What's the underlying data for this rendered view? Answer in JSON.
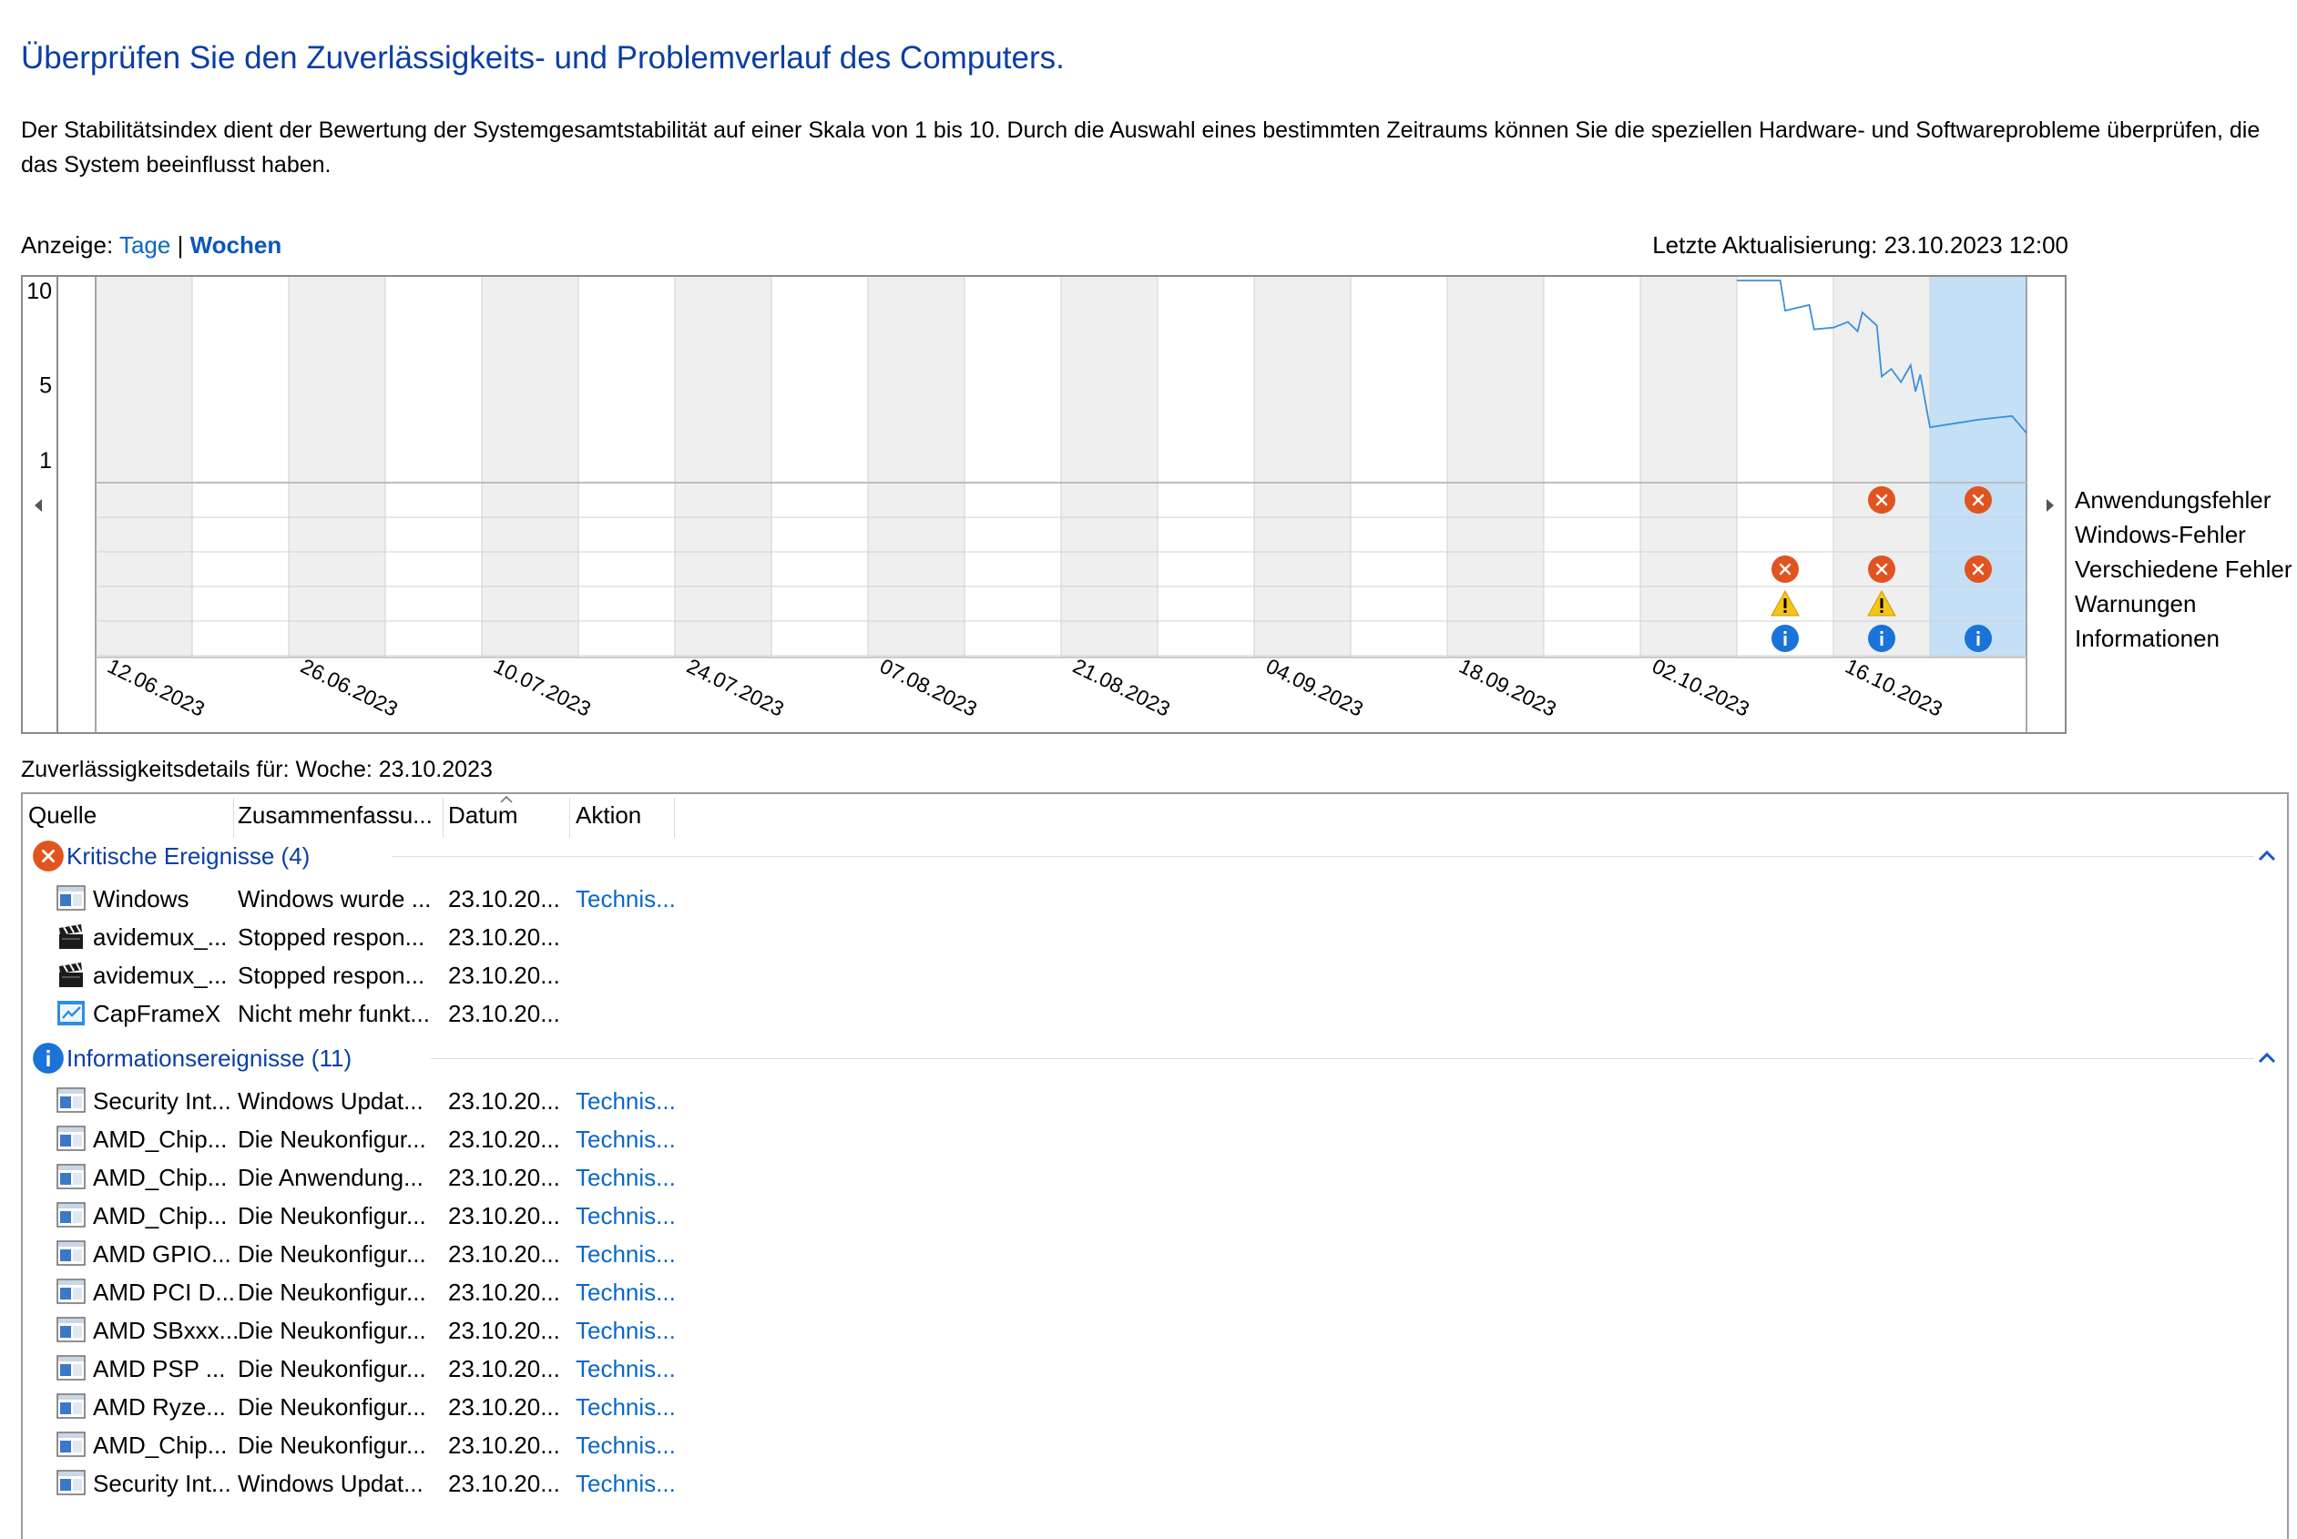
{
  "header": {
    "title": "Überprüfen Sie den Zuverlässigkeits- und Problemverlauf des Computers.",
    "description": "Der Stabilitätsindex dient der Bewertung der Systemgesamtstabilität auf einer Skala von 1 bis 10. Durch die Auswahl eines bestimmten Zeitraums können Sie die speziellen Hardware- und Softwareprobleme überprüfen, die das System beeinflusst haben."
  },
  "view": {
    "label": "Anzeige:",
    "days": "Tage",
    "separator": "|",
    "weeks": "Wochen",
    "selected": "Wochen"
  },
  "last_update": "Letzte Aktualisierung: 23.10.2023 12:00",
  "chart_data": {
    "type": "line",
    "title": "",
    "y_ticks": [
      "10",
      "5",
      "1"
    ],
    "ylim": [
      1,
      10
    ],
    "x_labels": [
      "12.06.2023",
      "26.06.2023",
      "10.07.2023",
      "24.07.2023",
      "07.08.2023",
      "21.08.2023",
      "04.09.2023",
      "18.09.2023",
      "02.10.2023",
      "16.10.2023"
    ],
    "week_count": 20,
    "selected_week_index": 19,
    "stability_series": {
      "name": "",
      "points": [
        [
          17.0,
          10.0
        ],
        [
          17.45,
          10.0
        ],
        [
          17.5,
          8.4
        ],
        [
          17.75,
          8.7
        ],
        [
          17.8,
          7.4
        ],
        [
          18.0,
          7.5
        ],
        [
          18.15,
          7.8
        ],
        [
          18.25,
          7.3
        ],
        [
          18.3,
          8.3
        ],
        [
          18.45,
          7.6
        ],
        [
          18.5,
          4.9
        ],
        [
          18.6,
          5.3
        ],
        [
          18.7,
          4.6
        ],
        [
          18.8,
          5.5
        ],
        [
          18.85,
          4.1
        ],
        [
          18.9,
          5.0
        ],
        [
          19.0,
          2.2
        ],
        [
          19.5,
          2.6
        ],
        [
          19.85,
          2.8
        ],
        [
          20.0,
          1.9
        ]
      ],
      "color": "#3c8fdc"
    },
    "event_rows": [
      {
        "label": "Anwendungsfehler",
        "markers": [
          {
            "week": 18,
            "icon": "error-icon"
          },
          {
            "week": 19,
            "icon": "error-icon"
          }
        ]
      },
      {
        "label": "Windows-Fehler",
        "markers": []
      },
      {
        "label": "Verschiedene Fehler",
        "markers": [
          {
            "week": 17,
            "icon": "error-icon"
          },
          {
            "week": 18,
            "icon": "error-icon"
          },
          {
            "week": 19,
            "icon": "error-icon"
          }
        ]
      },
      {
        "label": "Warnungen",
        "markers": [
          {
            "week": 17,
            "icon": "warning-icon"
          },
          {
            "week": 18,
            "icon": "warning-icon"
          }
        ]
      },
      {
        "label": "Informationen",
        "markers": [
          {
            "week": 17,
            "icon": "info-icon"
          },
          {
            "week": 18,
            "icon": "info-icon"
          },
          {
            "week": 19,
            "icon": "info-icon"
          }
        ]
      }
    ],
    "colors": {
      "shade": "#efefef",
      "selected": "#c4dff6",
      "grid": "#d0d0d0",
      "error": "#e0541f",
      "warning": "#f5c518",
      "info": "#1a73d9"
    }
  },
  "details": {
    "label": "Zuverlässigkeitsdetails für: Woche: 23.10.2023",
    "columns": [
      "Quelle",
      "Zusammenfassu...",
      "Datum",
      "Aktion"
    ],
    "groups": [
      {
        "title": "Kritische Ereignisse (4)",
        "icon": "error-icon",
        "rows": [
          {
            "icon": "app-window-icon",
            "source": "Windows",
            "summary": "Windows wurde ...",
            "date": "23.10.20...",
            "action": "Technis..."
          },
          {
            "icon": "clapperboard-icon",
            "source": "avidemux_...",
            "summary": "Stopped respon...",
            "date": "23.10.20...",
            "action": ""
          },
          {
            "icon": "clapperboard-icon",
            "source": "avidemux_...",
            "summary": "Stopped respon...",
            "date": "23.10.20...",
            "action": ""
          },
          {
            "icon": "capframex-icon",
            "source": "CapFrameX",
            "summary": "Nicht mehr funkt...",
            "date": "23.10.20...",
            "action": ""
          }
        ]
      },
      {
        "title": "Informationsereignisse (11)",
        "icon": "info-icon",
        "rows": [
          {
            "icon": "app-window-icon",
            "source": "Security Int...",
            "summary": "Windows Updat...",
            "date": "23.10.20...",
            "action": "Technis..."
          },
          {
            "icon": "app-window-icon",
            "source": "AMD_Chip...",
            "summary": "Die Neukonfigur...",
            "date": "23.10.20...",
            "action": "Technis..."
          },
          {
            "icon": "app-window-icon",
            "source": "AMD_Chip...",
            "summary": "Die Anwendung...",
            "date": "23.10.20...",
            "action": "Technis..."
          },
          {
            "icon": "app-window-icon",
            "source": "AMD_Chip...",
            "summary": "Die Neukonfigur...",
            "date": "23.10.20...",
            "action": "Technis..."
          },
          {
            "icon": "app-window-icon",
            "source": "AMD GPIO...",
            "summary": "Die Neukonfigur...",
            "date": "23.10.20...",
            "action": "Technis..."
          },
          {
            "icon": "app-window-icon",
            "source": "AMD PCI D...",
            "summary": "Die Neukonfigur...",
            "date": "23.10.20...",
            "action": "Technis..."
          },
          {
            "icon": "app-window-icon",
            "source": "AMD SBxxx...",
            "summary": "Die Neukonfigur...",
            "date": "23.10.20...",
            "action": "Technis..."
          },
          {
            "icon": "app-window-icon",
            "source": "AMD PSP ...",
            "summary": "Die Neukonfigur...",
            "date": "23.10.20...",
            "action": "Technis..."
          },
          {
            "icon": "app-window-icon",
            "source": "AMD Ryze...",
            "summary": "Die Neukonfigur...",
            "date": "23.10.20...",
            "action": "Technis..."
          },
          {
            "icon": "app-window-icon",
            "source": "AMD_Chip...",
            "summary": "Die Neukonfigur...",
            "date": "23.10.20...",
            "action": "Technis..."
          },
          {
            "icon": "app-window-icon",
            "source": "Security Int...",
            "summary": "Windows Updat...",
            "date": "23.10.20...",
            "action": "Technis..."
          }
        ]
      }
    ]
  }
}
